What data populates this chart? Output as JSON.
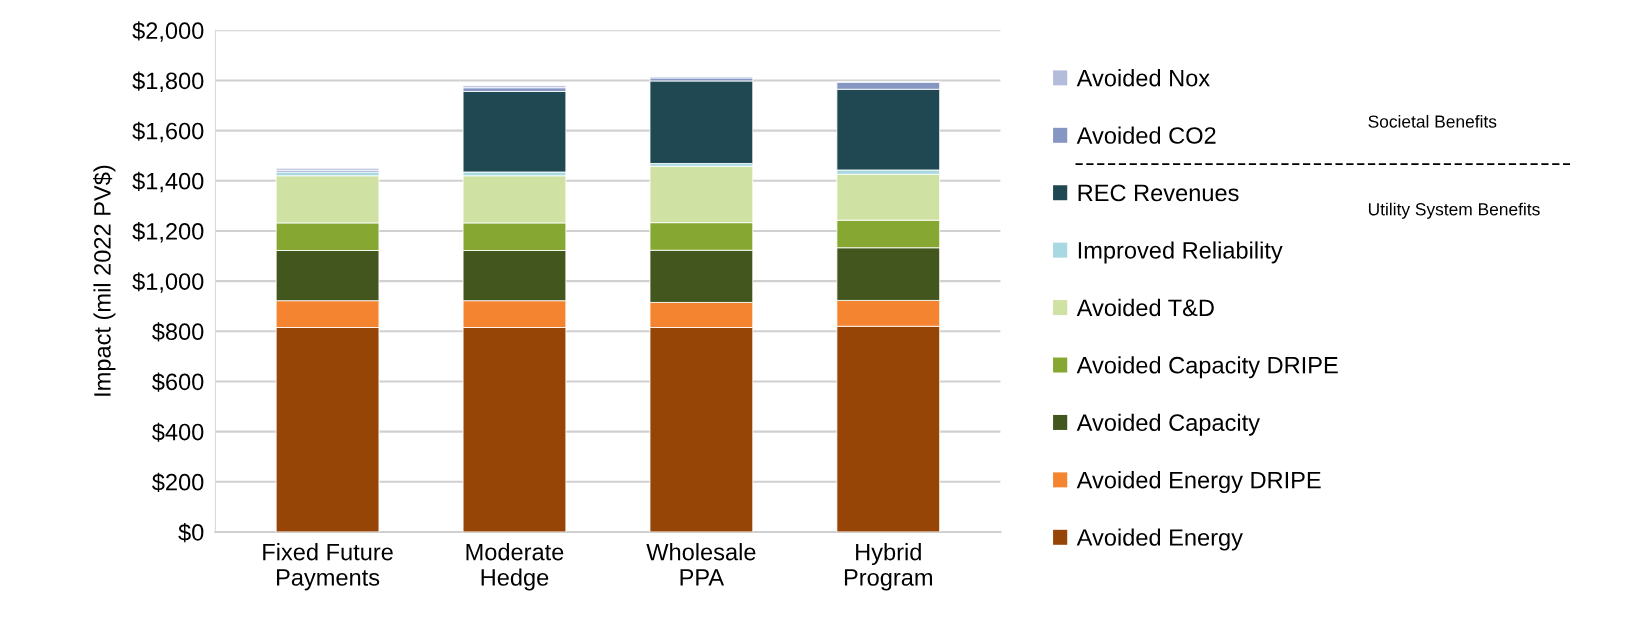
{
  "chart_data": {
    "type": "bar",
    "stacked": true,
    "ylabel": "Impact (mil 2022 PV$)",
    "categories": [
      "Fixed Future\nPayments",
      "Moderate\nHedge",
      "Wholesale\nPPA",
      "Hybrid\nProgram"
    ],
    "series": [
      {
        "name": "Avoided Energy",
        "color": "#974407",
        "values": [
          815,
          815,
          815,
          820
        ]
      },
      {
        "name": "Avoided Energy DRIPE",
        "color": "#f58431",
        "values": [
          107,
          107,
          100,
          103
        ]
      },
      {
        "name": "Avoided Capacity",
        "color": "#43561d",
        "values": [
          200,
          200,
          208,
          210
        ]
      },
      {
        "name": "Avoided Capacity DRIPE",
        "color": "#86a832",
        "values": [
          110,
          110,
          110,
          110
        ]
      },
      {
        "name": "Avoided T&D",
        "color": "#d0e2a3",
        "values": [
          188,
          188,
          225,
          183
        ]
      },
      {
        "name": "Improved Reliability",
        "color": "#a8d8e0",
        "values": [
          15,
          15,
          11,
          17
        ]
      },
      {
        "name": "REC Revenues",
        "color": "#1f4852",
        "values": [
          0,
          321,
          329,
          322
        ]
      },
      {
        "name": "Avoided CO2",
        "color": "#8596c3",
        "values": [
          7,
          15,
          12,
          28
        ]
      },
      {
        "name": "Avoided Nox",
        "color": "#b4bcdb",
        "values": [
          8,
          8,
          5,
          3
        ]
      }
    ],
    "ylim": [
      0,
      2000
    ],
    "yticks": [
      {
        "value": 0,
        "label": "$0"
      },
      {
        "value": 200,
        "label": "$200"
      },
      {
        "value": 400,
        "label": "$400"
      },
      {
        "value": 600,
        "label": "$600"
      },
      {
        "value": 800,
        "label": "$800"
      },
      {
        "value": 1000,
        "label": "$1,000"
      },
      {
        "value": 1200,
        "label": "$1,200"
      },
      {
        "value": 1400,
        "label": "$1,400"
      },
      {
        "value": 1600,
        "label": "$1,600"
      },
      {
        "value": 1800,
        "label": "$1,800"
      },
      {
        "value": 2000,
        "label": "$2,000"
      }
    ],
    "grid": "y",
    "legend": "right",
    "annotations": [
      "Societal Benefits",
      "Utility System Benefits"
    ]
  }
}
